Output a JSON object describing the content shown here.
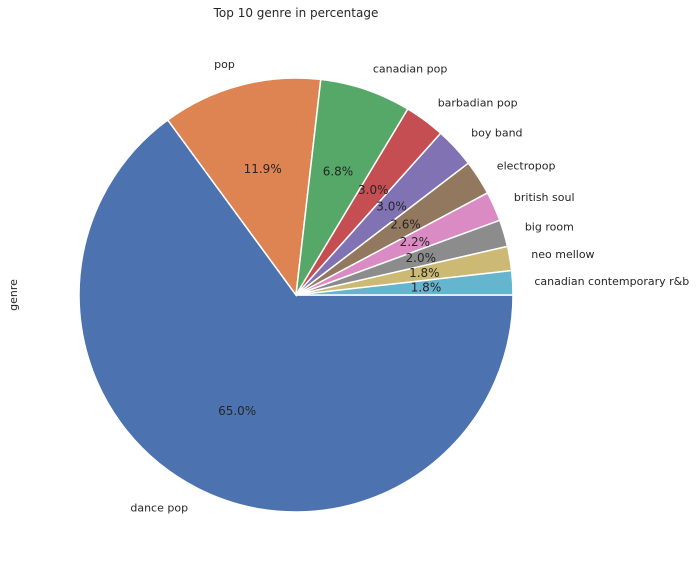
{
  "chart_data": {
    "type": "pie",
    "title": "Top 10 genre in percentage",
    "ylabel": "genre",
    "categories": [
      "dance pop",
      "pop",
      "canadian pop",
      "barbadian pop",
      "boy band",
      "electropop",
      "british soul",
      "big room",
      "neo mellow",
      "canadian contemporary r&b"
    ],
    "values": [
      65.0,
      11.9,
      6.8,
      3.0,
      3.0,
      2.6,
      2.2,
      2.0,
      1.8,
      1.8
    ],
    "value_labels": [
      "65.0%",
      "11.9%",
      "6.8%",
      "3.0%",
      "3.0%",
      "2.6%",
      "2.2%",
      "2.0%",
      "1.8%",
      "1.8%"
    ],
    "colors": [
      "#4c72b0",
      "#dd8452",
      "#55a868",
      "#c44e52",
      "#8172b3",
      "#937860",
      "#da8bc3",
      "#8c8c8c",
      "#ccb974",
      "#64b5cd"
    ],
    "start_angle_deg": 0,
    "direction": "clockwise",
    "legend": "none"
  }
}
